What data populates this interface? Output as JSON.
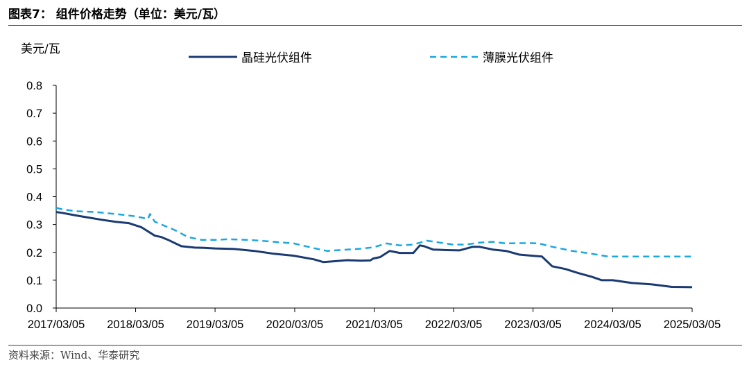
{
  "figure": {
    "title": "图表7： 组件价格走势（单位：美元/瓦）",
    "source": "资料来源：Wind、华泰研究"
  },
  "chart_data": {
    "type": "line",
    "title": "",
    "xlabel": "",
    "ylabel": "美元/瓦",
    "ylim": [
      0,
      0.8
    ],
    "yticks": [
      "0.0",
      "0.1",
      "0.2",
      "0.3",
      "0.4",
      "0.5",
      "0.6",
      "0.7",
      "0.8"
    ],
    "xlim": [
      "2017/03/05",
      "2025/03/05"
    ],
    "xticks": [
      "2017/03/05",
      "2018/03/05",
      "2019/03/05",
      "2020/03/05",
      "2021/03/05",
      "2022/03/05",
      "2023/03/05",
      "2024/03/05",
      "2025/03/05"
    ],
    "grid": false,
    "legend_position": "top",
    "series": [
      {
        "name": "晶硅光伏组件",
        "color": "#1a3a73",
        "style": "solid",
        "x": [
          "2017/03/05",
          "2017/04/01",
          "2017/06/01",
          "2017/08/01",
          "2017/10/01",
          "2017/12/01",
          "2018/02/01",
          "2018/04/01",
          "2018/06/01",
          "2018/07/01",
          "2018/08/01",
          "2018/10/01",
          "2018/12/01",
          "2019/01/15",
          "2019/03/05",
          "2019/06/01",
          "2019/09/01",
          "2019/12/01",
          "2020/03/01",
          "2020/06/01",
          "2020/07/15",
          "2020/09/01",
          "2020/11/01",
          "2021/01/01",
          "2021/02/15",
          "2021/03/01",
          "2021/04/01",
          "2021/05/15",
          "2021/07/01",
          "2021/09/01",
          "2021/10/01",
          "2021/10/20",
          "2021/12/01",
          "2022/02/01",
          "2022/04/01",
          "2022/06/01",
          "2022/07/01",
          "2022/09/01",
          "2022/11/01",
          "2023/01/01",
          "2023/03/01",
          "2023/04/15",
          "2023/06/01",
          "2023/08/01",
          "2023/10/01",
          "2023/12/01",
          "2024/01/15",
          "2024/03/05",
          "2024/06/01",
          "2024/09/01",
          "2024/12/01",
          "2025/03/05"
        ],
        "y": [
          0.345,
          0.342,
          0.333,
          0.325,
          0.317,
          0.31,
          0.305,
          0.29,
          0.26,
          0.255,
          0.245,
          0.222,
          0.217,
          0.216,
          0.214,
          0.212,
          0.205,
          0.195,
          0.188,
          0.175,
          0.165,
          0.168,
          0.172,
          0.17,
          0.171,
          0.178,
          0.183,
          0.205,
          0.198,
          0.198,
          0.225,
          0.222,
          0.21,
          0.208,
          0.207,
          0.22,
          0.22,
          0.21,
          0.205,
          0.192,
          0.188,
          0.185,
          0.15,
          0.14,
          0.125,
          0.112,
          0.1,
          0.1,
          0.09,
          0.085,
          0.076,
          0.075
        ]
      },
      {
        "name": "薄膜光伏组件",
        "color": "#1aa7e0",
        "style": "dashed",
        "x": [
          "2017/03/05",
          "2017/04/01",
          "2017/06/01",
          "2017/09/01",
          "2017/12/01",
          "2018/03/01",
          "2018/05/01",
          "2018/05/10",
          "2018/06/01",
          "2018/09/01",
          "2018/11/01",
          "2019/01/01",
          "2019/03/05",
          "2019/05/01",
          "2019/08/01",
          "2019/11/01",
          "2020/03/01",
          "2020/06/01",
          "2020/08/01",
          "2020/11/01",
          "2021/01/01",
          "2021/03/01",
          "2021/05/01",
          "2021/07/01",
          "2021/09/01",
          "2021/11/01",
          "2022/01/01",
          "2022/03/01",
          "2022/05/01",
          "2022/07/01",
          "2022/09/01",
          "2022/11/01",
          "2023/01/01",
          "2023/03/01",
          "2023/04/01",
          "2023/06/01",
          "2023/09/01",
          "2023/12/01",
          "2024/02/15",
          "2024/06/01",
          "2024/09/01",
          "2024/12/01",
          "2025/03/05"
        ],
        "y": [
          0.36,
          0.355,
          0.348,
          0.345,
          0.338,
          0.33,
          0.32,
          0.338,
          0.31,
          0.28,
          0.255,
          0.245,
          0.245,
          0.247,
          0.245,
          0.24,
          0.232,
          0.215,
          0.205,
          0.21,
          0.213,
          0.218,
          0.232,
          0.225,
          0.228,
          0.242,
          0.235,
          0.228,
          0.228,
          0.235,
          0.238,
          0.232,
          0.233,
          0.233,
          0.232,
          0.22,
          0.205,
          0.195,
          0.185,
          0.185,
          0.185,
          0.185,
          0.185
        ]
      }
    ]
  }
}
